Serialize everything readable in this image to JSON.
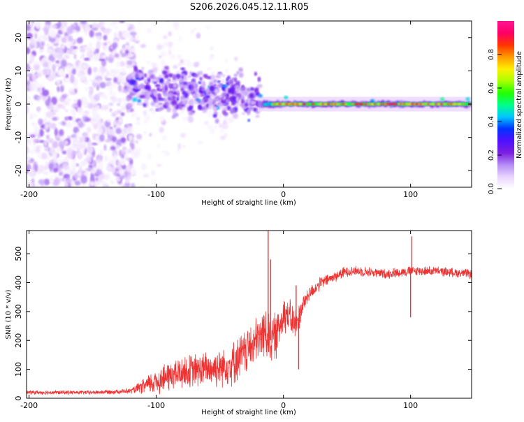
{
  "title": "S206.2026.045.12.11.R05",
  "chart_data": [
    {
      "type": "heatmap",
      "description": "Spectrogram of received signal vs. height of straight line",
      "xlabel": "Height of straight line (km)",
      "ylabel": "Frequency (Hz)",
      "xlim": [
        -202,
        148
      ],
      "ylim": [
        -25,
        25
      ],
      "xticks": [
        -200,
        -100,
        0,
        100
      ],
      "yticks": [
        -20,
        -10,
        0,
        10,
        20
      ],
      "colorbar": {
        "label": "Normalized spectral amplitude",
        "range": [
          0,
          1
        ],
        "ticks": [
          "0.0",
          "0.2",
          "0.4",
          "0.6",
          "0.8"
        ],
        "colormap": [
          "#ffffff",
          "#e9d3ff",
          "#b48cf5",
          "#7a1fe0",
          "#5010ff",
          "#0033ff",
          "#00c8ff",
          "#00ff88",
          "#22ff00",
          "#aaff00",
          "#ffee00",
          "#ff9900",
          "#ff3300",
          "#ff0066",
          "#ff1493"
        ]
      },
      "features": [
        {
          "region": "x -200 to -120",
          "description": "diffuse purple noise spread across all frequencies"
        },
        {
          "region": "x -120 to -20",
          "description": "band of blue/purple blobs centered near +3 Hz, tapering toward 0 Hz"
        },
        {
          "region": "x -20 to 148",
          "description": "narrow high-amplitude tone at 0 Hz (red core with green halo)"
        }
      ]
    },
    {
      "type": "line",
      "xlabel": "Height of straight line (km)",
      "ylabel": "SNR (10 * v/v)",
      "xlim": [
        -202,
        148
      ],
      "ylim": [
        0,
        580
      ],
      "xticks": [
        -200,
        -100,
        0,
        100
      ],
      "yticks": [
        0,
        100,
        200,
        300,
        400,
        500
      ],
      "series": [
        {
          "name": "SNR",
          "color": "#ee3333",
          "envelope": {
            "x": [
              -202,
              -150,
              -120,
              -110,
              -100,
              -80,
              -60,
              -40,
              -30,
              -20,
              -15,
              -10,
              -5,
              0,
              5,
              10,
              15,
              20,
              30,
              40,
              50,
              60,
              80,
              100,
              120,
              148
            ],
            "mean": [
              20,
              20,
              25,
              40,
              60,
              90,
              100,
              120,
              160,
              200,
              230,
              200,
              220,
              300,
              280,
              250,
              320,
              360,
              400,
              420,
              440,
              440,
              430,
              440,
              440,
              430
            ],
            "noise": [
              8,
              8,
              10,
              30,
              55,
              65,
              70,
              85,
              90,
              95,
              100,
              100,
              90,
              80,
              70,
              70,
              40,
              30,
              25,
              22,
              22,
              20,
              20,
              20,
              18,
              18
            ]
          },
          "spikes": [
            {
              "x": -12,
              "y": 580
            },
            {
              "x": -10,
              "y": 480
            },
            {
              "x": 10,
              "y": 390
            },
            {
              "x": 12,
              "y": 100
            },
            {
              "x": 100,
              "y": 280
            },
            {
              "x": 101,
              "y": 560
            }
          ]
        }
      ]
    }
  ]
}
